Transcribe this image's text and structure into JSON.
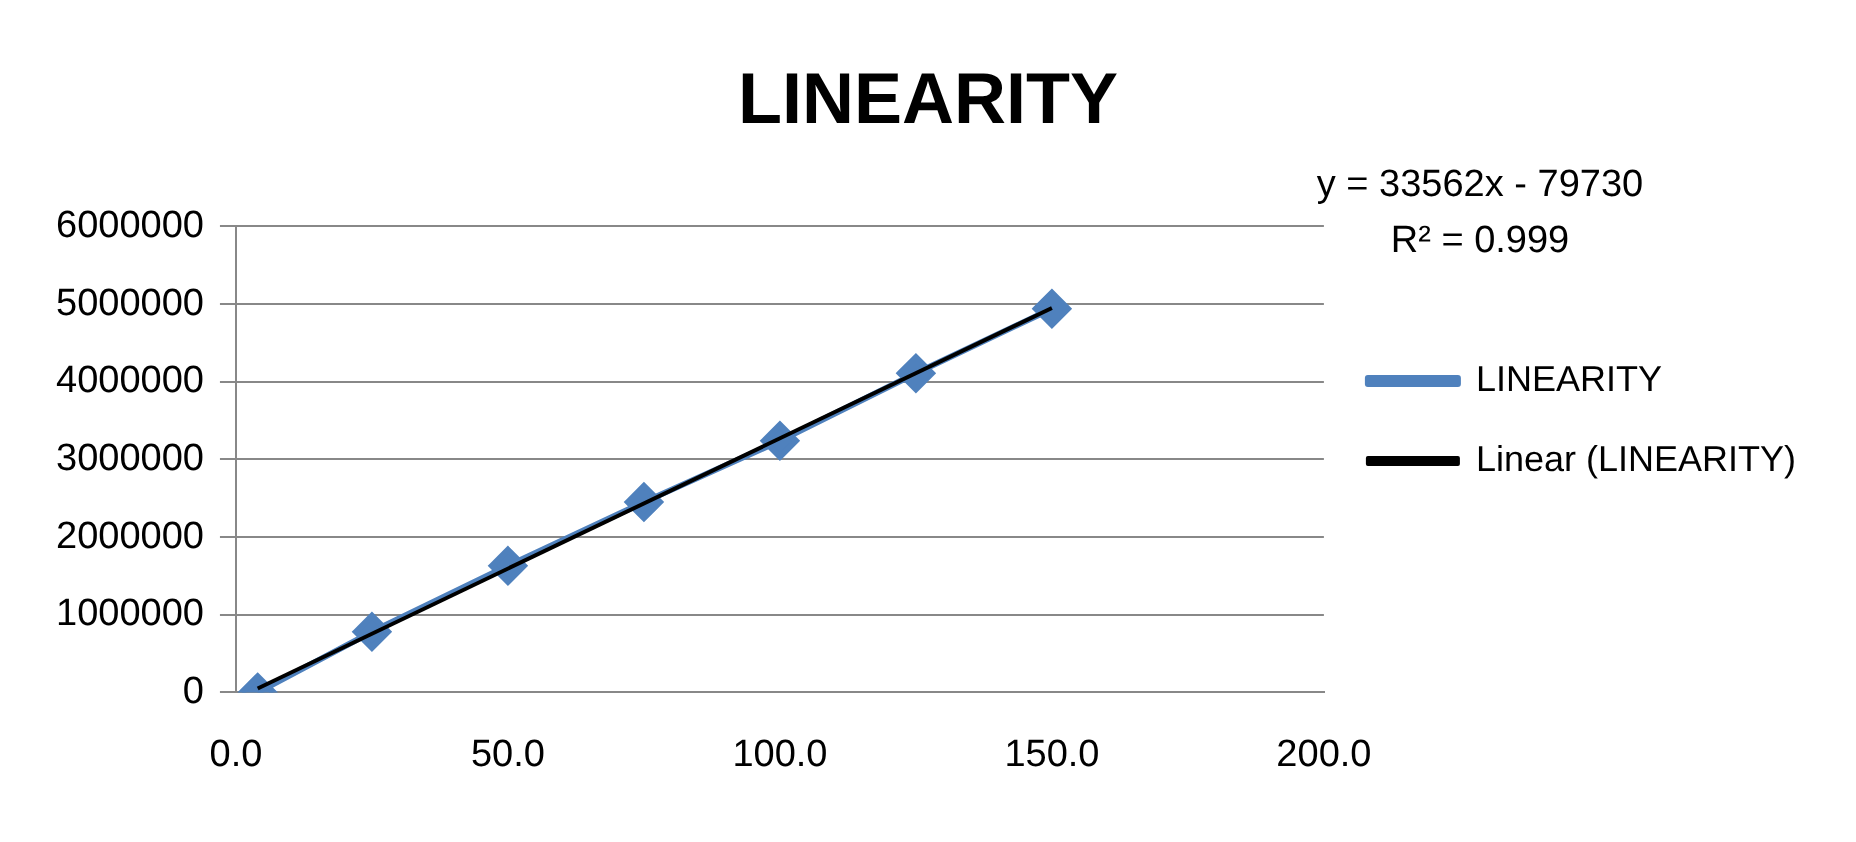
{
  "chart_data": {
    "type": "line",
    "title": "LINEARITY",
    "series": [
      {
        "name": "LINEARITY",
        "color": "#4f81bd",
        "marker": "diamond",
        "x": [
          4,
          25,
          50,
          75,
          100,
          125,
          150
        ],
        "values": [
          0,
          780000,
          1630000,
          2450000,
          3240000,
          4110000,
          4940000
        ]
      },
      {
        "name": "Linear (LINEARITY)",
        "color": "#000000",
        "marker": "none",
        "x": [
          4,
          150
        ],
        "values": [
          50000,
          4950000
        ]
      }
    ],
    "xlim": [
      0,
      200
    ],
    "xticks": [
      {
        "value": 0,
        "label": "0.0"
      },
      {
        "value": 50,
        "label": "50.0"
      },
      {
        "value": 100,
        "label": "100.0"
      },
      {
        "value": 150,
        "label": "150.0"
      },
      {
        "value": 200,
        "label": "200.0"
      }
    ],
    "ylim": [
      0,
      6000000
    ],
    "yticks": [
      0,
      1000000,
      2000000,
      3000000,
      4000000,
      5000000,
      6000000
    ],
    "grid": "y",
    "legend": "right",
    "annotations": [
      "y = 33562x - 79730",
      "R² = 0.999"
    ]
  }
}
